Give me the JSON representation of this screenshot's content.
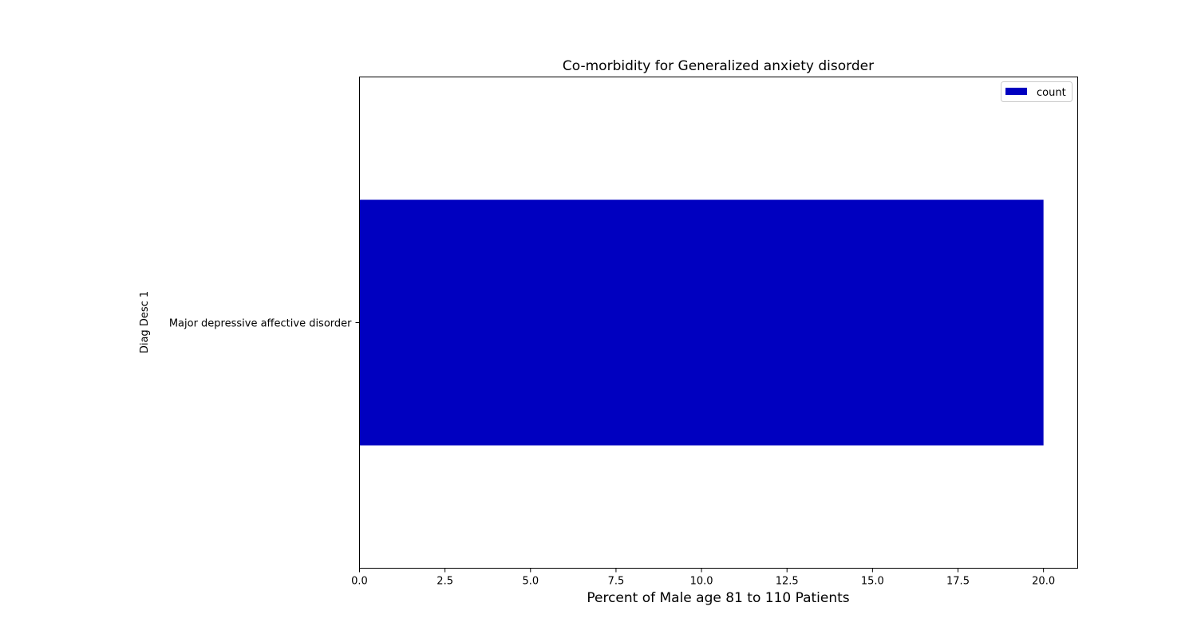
{
  "chart_data": {
    "type": "bar",
    "orientation": "horizontal",
    "title": "Co-morbidity for Generalized anxiety disorder",
    "xlabel": "Percent of Male age 81 to 110 Patients",
    "ylabel": "Diag Desc 1",
    "categories": [
      "Major depressive affective disorder"
    ],
    "series": [
      {
        "name": "count",
        "values": [
          20.0
        ],
        "color": "#0000c0"
      }
    ],
    "xlim": [
      0,
      21.0
    ],
    "xticks": [
      0.0,
      2.5,
      5.0,
      7.5,
      10.0,
      12.5,
      15.0,
      17.5,
      20.0
    ],
    "xtick_labels": [
      "0.0",
      "2.5",
      "5.0",
      "7.5",
      "10.0",
      "12.5",
      "15.0",
      "17.5",
      "20.0"
    ],
    "grid": false,
    "legend": "top-right"
  }
}
